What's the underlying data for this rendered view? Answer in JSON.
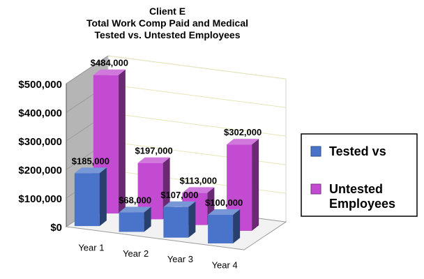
{
  "chart_data": {
    "type": "bar",
    "style": "3d-clustered-column",
    "title": [
      "Client E",
      "Total Work Comp Paid and Medical",
      "Tested vs. Untested Employees"
    ],
    "categories": [
      "Year 1",
      "Year 2",
      "Year 3",
      "Year 4"
    ],
    "series": [
      {
        "name": "Tested  vs",
        "color": "#4a74c9",
        "values": [
          185000,
          68000,
          107000,
          100000
        ],
        "labels": [
          "$185,000",
          "$68,000",
          "$107,000",
          "$100,000"
        ]
      },
      {
        "name": "Untested Employees",
        "color": "#c24bd2",
        "values": [
          484000,
          197000,
          113000,
          302000
        ],
        "labels": [
          "$484,000",
          "$197,000",
          "$113,000",
          "$302,000"
        ]
      }
    ],
    "y_ticks": [
      "$0",
      "$100,000",
      "$200,000",
      "$300,000",
      "$400,000",
      "$500,000"
    ],
    "ylim": [
      0,
      500000
    ],
    "grid": true,
    "legend_position": "right"
  }
}
